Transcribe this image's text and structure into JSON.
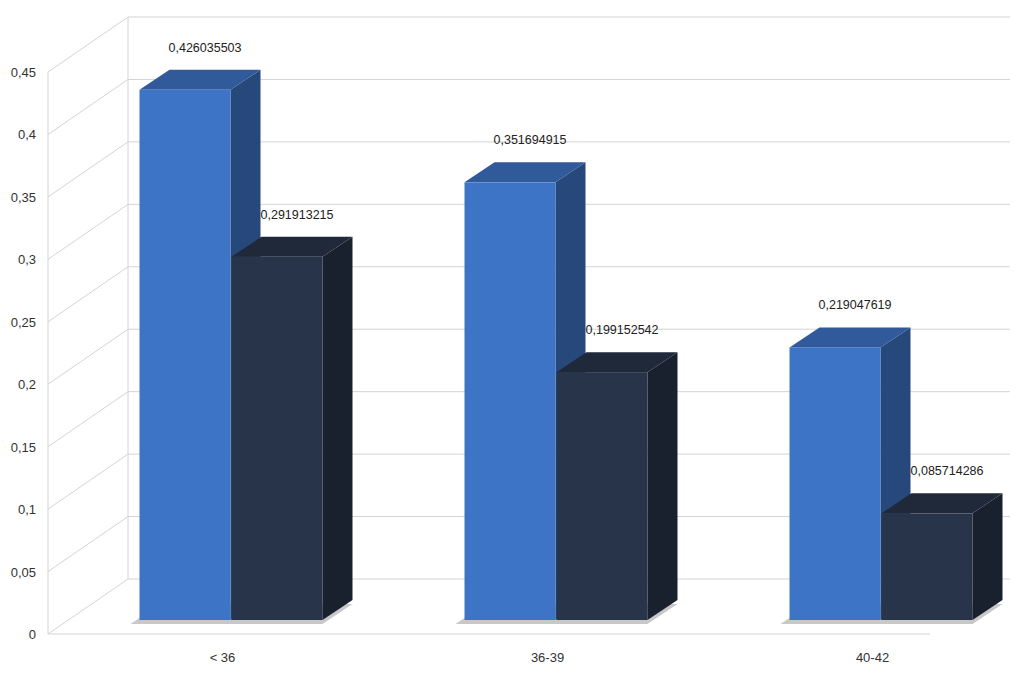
{
  "chart_data": {
    "type": "bar",
    "categories": [
      "< 36",
      "36-39",
      "40-42"
    ],
    "series": [
      {
        "color": "#3d74c5",
        "values": [
          0.426035503,
          0.351694915,
          0.219047619
        ],
        "value_labels": [
          "0,426035503",
          "0,351694915",
          "0,219047619"
        ]
      },
      {
        "color": "#28344a",
        "values": [
          0.291913215,
          0.199152542,
          0.085714286
        ],
        "value_labels": [
          "0,291913215",
          "0,199152542",
          "0,085714286"
        ]
      }
    ],
    "ylim": [
      0,
      0.45
    ],
    "yticks": [
      0,
      {
        "value": 0.05,
        "label": "0,05"
      },
      {
        "value": 0.1,
        "label": "0,1"
      },
      {
        "value": 0.15,
        "label": "0,15"
      },
      {
        "value": 0.2,
        "label": "0,2"
      },
      {
        "value": 0.25,
        "label": "0,25"
      },
      {
        "value": 0.3,
        "label": "0,3"
      },
      {
        "value": 0.35,
        "label": "0,35"
      },
      {
        "value": 0.4,
        "label": "0,4"
      },
      {
        "value": 0.45,
        "label": "0,45"
      }
    ],
    "grid": true,
    "data_labels": true
  }
}
